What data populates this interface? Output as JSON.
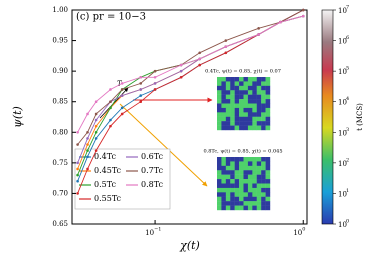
{
  "chart_data": {
    "type": "line",
    "title": "(c) pr = 10−3",
    "x_label": "χ(t)",
    "y_label": "ψ(t)",
    "log_x": true,
    "xlim": [
      0.0275,
      1.06
    ],
    "xticks": [
      {
        "value": 0.1,
        "label": "10",
        "exponent": "−1"
      },
      {
        "value": 1,
        "label": "10",
        "exponent": "0"
      }
    ],
    "ylim": [
      0.65,
      1.0
    ],
    "yticks": [
      0.65,
      {
        "value": 0.7,
        "label": "0.70"
      },
      0.75,
      {
        "value": 0.8,
        "label": "0.80"
      },
      0.85,
      {
        "value": 0.9,
        "label": "0.90"
      },
      0.95,
      {
        "value": 1.0,
        "label": "1.00"
      }
    ],
    "x": [
      0.03,
      0.035,
      0.04,
      0.05,
      0.06,
      0.08,
      0.1,
      0.15,
      0.2,
      0.3,
      0.5,
      0.7,
      1.0
    ],
    "series": [
      {
        "name": "0.4Tc",
        "color": "#1f77b4",
        "values": [
          0.72,
          0.76,
          0.79,
          0.82,
          0.84,
          0.86,
          0.87,
          0.89,
          0.91,
          0.93,
          0.96,
          0.98,
          1.0
        ]
      },
      {
        "name": "0.45Tc",
        "color": "#ff7f0e",
        "values": [
          0.74,
          0.78,
          0.81,
          0.84,
          0.86,
          0.87,
          0.88,
          0.9,
          0.92,
          0.94,
          0.96,
          0.98,
          0.99
        ]
      },
      {
        "name": "0.5Tc",
        "color": "#2ca02c",
        "values": [
          0.73,
          0.77,
          0.8,
          0.84,
          0.87,
          0.89,
          0.9,
          0.91,
          0.92,
          0.94,
          0.96,
          0.98,
          0.99
        ]
      },
      {
        "name": "0.55Tc",
        "color": "#d62728",
        "values": [
          0.7,
          0.74,
          0.77,
          0.81,
          0.83,
          0.85,
          0.87,
          0.89,
          0.91,
          0.93,
          0.96,
          0.98,
          1.0
        ]
      },
      {
        "name": "0.6Tc",
        "color": "#9467bd",
        "values": [
          0.75,
          0.79,
          0.82,
          0.85,
          0.86,
          0.87,
          0.88,
          0.9,
          0.92,
          0.94,
          0.96,
          0.98,
          0.99
        ]
      },
      {
        "name": "0.7Tc",
        "color": "#8c564b",
        "values": [
          0.78,
          0.8,
          0.83,
          0.85,
          0.87,
          0.88,
          0.9,
          0.91,
          0.93,
          0.95,
          0.97,
          0.98,
          1.0
        ]
      },
      {
        "name": "0.8Tc",
        "color": "#e377c2",
        "values": [
          0.8,
          0.83,
          0.85,
          0.87,
          0.88,
          0.89,
          0.89,
          0.91,
          0.92,
          0.94,
          0.96,
          0.98,
          0.99
        ]
      }
    ],
    "colorbar": {
      "label": "t (MCS)",
      "clim": [
        1,
        10000000
      ],
      "ticks": [
        {
          "value": 1,
          "label": "10",
          "exponent": "0"
        },
        {
          "value": 10,
          "label": "10",
          "exponent": "1"
        },
        {
          "value": 100,
          "label": "10",
          "exponent": "2"
        },
        {
          "value": 1000,
          "label": "10",
          "exponent": "3"
        },
        {
          "value": 10000,
          "label": "10",
          "exponent": "4"
        },
        {
          "value": 100000,
          "label": "10",
          "exponent": "5"
        },
        {
          "value": 1000000,
          "label": "10",
          "exponent": "6"
        },
        {
          "value": 10000000,
          "label": "10",
          "exponent": "7"
        }
      ]
    },
    "annotations": {
      "arrow_label": "T",
      "inset_top": "0.4Tc, ψ(t) = 0.85, χ(t) = 0.07",
      "inset_bottom": "0.8Tc, ψ(t) = 0.85, χ(t) = 0.045"
    }
  }
}
